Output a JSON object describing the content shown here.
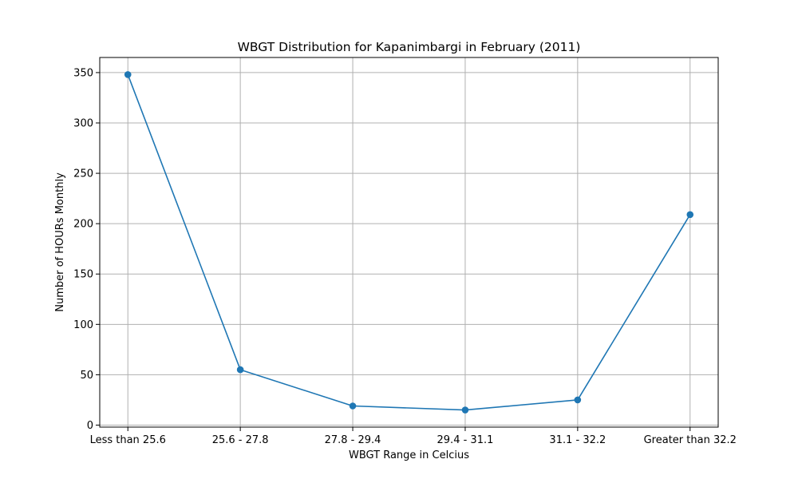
{
  "chart_data": {
    "type": "line",
    "title": "WBGT Distribution for Kapanimbargi in February (2011)",
    "xlabel": "WBGT Range in Celcius",
    "ylabel": "Number of HOURs Monthly",
    "categories": [
      "Less than 25.6",
      "25.6 - 27.8",
      "27.8 - 29.4",
      "29.4 - 31.1",
      "31.1 - 32.2",
      "Greater than 32.2"
    ],
    "series": [
      {
        "values": [
          348,
          55,
          19,
          15,
          25,
          209
        ]
      }
    ],
    "ylim": [
      -2,
      365
    ],
    "yticks": [
      0,
      50,
      100,
      150,
      200,
      250,
      300,
      350
    ],
    "grid": true,
    "marker": "circle",
    "color": "#1f77b4"
  }
}
